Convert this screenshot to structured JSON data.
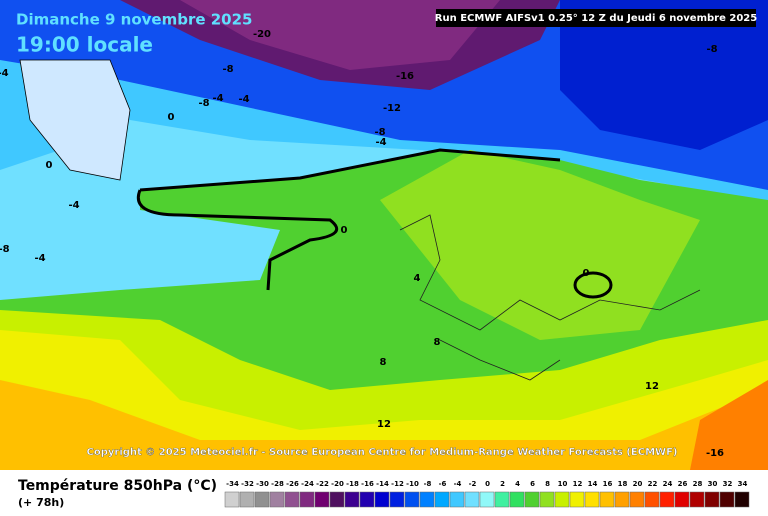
{
  "header": {
    "date": "Dimanche 9 novembre 2025",
    "time": "19:00 locale",
    "run": "Run ECMWF AIFSv1 0.25° 12 Z du Jeudi 6 novembre 2025"
  },
  "contour_labels": [
    -20,
    -8,
    -16,
    -8,
    -4,
    -8,
    -4,
    -4,
    -12,
    0,
    -8,
    -4,
    0,
    -4,
    0,
    -8,
    -4,
    4,
    0,
    8,
    8,
    12,
    12,
    -16
  ],
  "copyright": "Copyright © 2025 Meteociel.fr - Source European Centre for Medium-Range Weather Forecasts (ECMWF)",
  "legend": {
    "title": "Température 850hPa (°C)",
    "lead": "(+ 78h)",
    "scale": [
      -34,
      -32,
      -30,
      -28,
      -26,
      -24,
      -22,
      -20,
      -18,
      -16,
      -14,
      -12,
      -10,
      -8,
      -6,
      -4,
      -2,
      0,
      2,
      4,
      6,
      8,
      10,
      12,
      14,
      16,
      18,
      20,
      22,
      24,
      26,
      28,
      30,
      32,
      34
    ],
    "colors": [
      "#d0d0d0",
      "#b0b0b0",
      "#909090",
      "#a080a0",
      "#905090",
      "#802a80",
      "#700070",
      "#501060",
      "#3c0090",
      "#2200b0",
      "#0000d0",
      "#0020e0",
      "#0050f0",
      "#0080ff",
      "#00a8ff",
      "#40c8ff",
      "#70e0ff",
      "#90f8f8",
      "#40f0a0",
      "#30e060",
      "#50d030",
      "#90e020",
      "#c8f000",
      "#f0f000",
      "#ffe000",
      "#ffc000",
      "#ffa000",
      "#ff8000",
      "#ff5000",
      "#ff2000",
      "#e00000",
      "#b00000",
      "#800000",
      "#500000",
      "#200000"
    ]
  }
}
